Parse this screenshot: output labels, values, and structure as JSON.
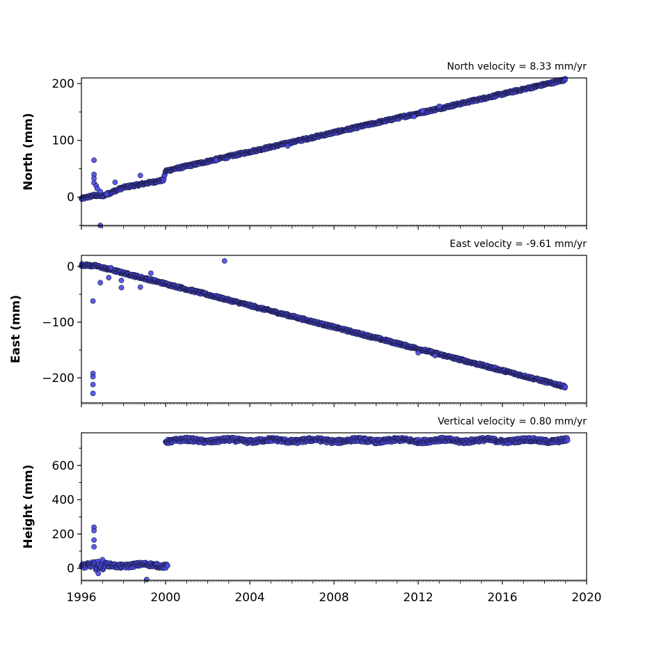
{
  "chart_data": [
    {
      "type": "scatter",
      "title": "North velocity = 8.33 mm/yr",
      "xlabel": "",
      "ylabel": "North (mm)",
      "xlim": [
        1996,
        2020
      ],
      "ylim": [
        -50,
        210
      ],
      "yticks": [
        0,
        100,
        200
      ],
      "yticklabels": [
        "0",
        "100",
        "200"
      ],
      "xticks": [
        1996,
        2000,
        2004,
        2008,
        2012,
        2016,
        2020
      ],
      "xticklabels": [],
      "grid": false,
      "marker_color": "#4a4ae6",
      "marker_edge": "#1a1a40",
      "trend": [
        [
          1996,
          -3
        ],
        [
          1996.6,
          3
        ],
        [
          1997,
          2
        ],
        [
          1998,
          17
        ],
        [
          1999.9,
          30
        ],
        [
          2000.0,
          46
        ],
        [
          2019,
          207
        ]
      ],
      "series": [
        {
          "points": [
            [
              1996.6,
              65
            ],
            [
              1996.6,
              40
            ],
            [
              1996.6,
              33
            ],
            [
              1996.6,
              25
            ],
            [
              1996.7,
              20
            ],
            [
              1996.75,
              15
            ],
            [
              1996.9,
              10
            ],
            [
              1997.2,
              5
            ],
            [
              1997.6,
              26
            ],
            [
              1998.8,
              38
            ],
            [
              1996.9,
              -50
            ],
            [
              2002.4,
              65
            ],
            [
              2005.8,
              90
            ],
            [
              2012.2,
              152
            ],
            [
              2013.0,
              160
            ],
            [
              2011.8,
              142
            ]
          ]
        }
      ]
    },
    {
      "type": "scatter",
      "title": "East velocity = -9.61 mm/yr",
      "xlabel": "",
      "ylabel": "East (mm)",
      "xlim": [
        1996,
        2020
      ],
      "ylim": [
        -245,
        20
      ],
      "yticks": [
        0,
        -100,
        -200
      ],
      "yticklabels": [
        "0",
        "−100",
        "−200"
      ],
      "xticks": [
        1996,
        2000,
        2004,
        2008,
        2012,
        2016,
        2020
      ],
      "xticklabels": [],
      "grid": false,
      "marker_color": "#4a4ae6",
      "marker_edge": "#1a1a40",
      "trend": [
        [
          1996,
          3
        ],
        [
          1996.7,
          1
        ],
        [
          2019,
          -216
        ]
      ],
      "series": [
        {
          "points": [
            [
              1996.55,
              -62
            ],
            [
              1996.55,
              -192
            ],
            [
              1996.55,
              -198
            ],
            [
              1996.55,
              -212
            ],
            [
              1996.55,
              -228
            ],
            [
              1996.9,
              -29
            ],
            [
              1997.3,
              -20
            ],
            [
              1997.4,
              -2
            ],
            [
              1997.9,
              -25
            ],
            [
              1997.9,
              -38
            ],
            [
              1998.8,
              -37
            ],
            [
              1999.3,
              -12
            ],
            [
              2002.8,
              10
            ],
            [
              2012.0,
              -155
            ],
            [
              2012.8,
              -160
            ]
          ]
        }
      ]
    },
    {
      "type": "scatter",
      "title": "Vertical velocity = 0.80 mm/yr",
      "xlabel": "",
      "ylabel": "Height (mm)",
      "xlim": [
        1996,
        2020
      ],
      "ylim": [
        -70,
        790
      ],
      "yticks": [
        0,
        200,
        400,
        600
      ],
      "yticklabels": [
        "0",
        "200",
        "400",
        "600"
      ],
      "xticks": [
        1996,
        2000,
        2004,
        2008,
        2012,
        2016,
        2020
      ],
      "xticklabels": [
        "1996",
        "2000",
        "2004",
        "2008",
        "2012",
        "2016",
        "2020"
      ],
      "grid": false,
      "marker_color": "#4a4ae6",
      "marker_edge": "#1a1a40",
      "segments": [
        {
          "x0": 1996.0,
          "x1": 1996.6,
          "mean": 20,
          "amp": 15
        },
        {
          "x0": 1996.6,
          "x1": 1997.1,
          "mean": 5,
          "amp": 25
        },
        {
          "x0": 1997.1,
          "x1": 2000.1,
          "mean": 18,
          "amp": 12
        },
        {
          "x0": 2000.0,
          "x1": 2019.1,
          "mean": 745,
          "amp": 12
        }
      ],
      "series": [
        {
          "points": [
            [
              1996.6,
              240
            ],
            [
              1996.6,
              220
            ],
            [
              1996.6,
              165
            ],
            [
              1996.6,
              125
            ],
            [
              1999.1,
              -65
            ],
            [
              1996.8,
              -30
            ],
            [
              1997.0,
              50
            ]
          ]
        }
      ]
    }
  ]
}
